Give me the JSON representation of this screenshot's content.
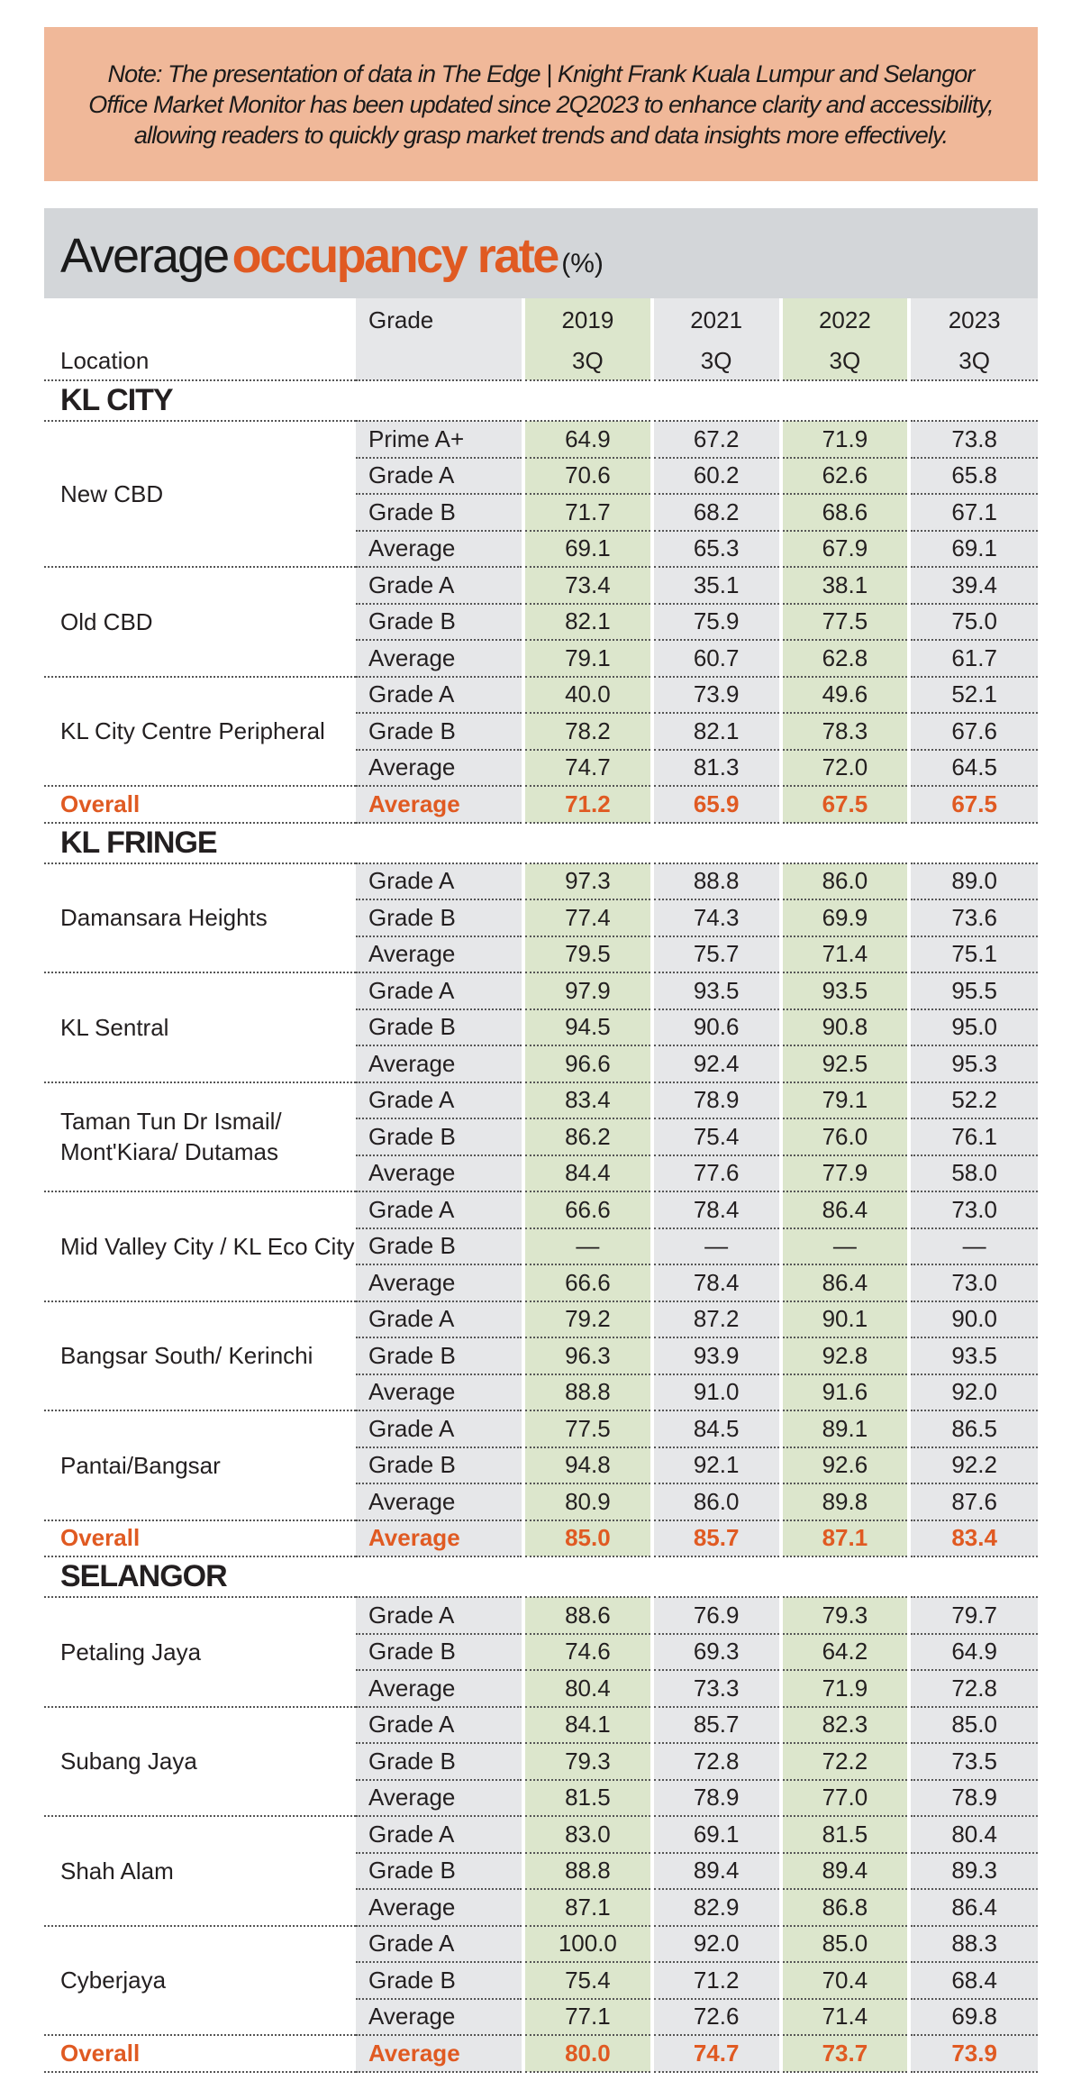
{
  "note": "Note: The presentation of data in The Edge | Knight Frank Kuala Lumpur and Selangor Office Market Monitor has been updated since 2Q2023 to enhance clarity and accessibility, allowing readers to quickly grasp market trends and data insights more effectively.",
  "title": {
    "part1": "Average",
    "part2": "occupancy rate",
    "part3": "(%)"
  },
  "colors": {
    "note_bg": "#f0b899",
    "title_bg": "#d3d6d9",
    "accent": "#e05a22",
    "highlight_col": "#dce6cc",
    "cell_bg": "#e6e7e9"
  },
  "header": {
    "grade": "Grade",
    "location": "Location",
    "years": [
      "2019",
      "2021",
      "2022",
      "2023"
    ],
    "quarters": [
      "3Q",
      "3Q",
      "3Q",
      "3Q"
    ]
  },
  "sections": [
    {
      "name": "KL CITY",
      "groups": [
        {
          "location": "New CBD",
          "rows": [
            {
              "grade": "Prime A+",
              "values": [
                "64.9",
                "67.2",
                "71.9",
                "73.8"
              ]
            },
            {
              "grade": "Grade A",
              "values": [
                "70.6",
                "60.2",
                "62.6",
                "65.8"
              ]
            },
            {
              "grade": "Grade B",
              "values": [
                "71.7",
                "68.2",
                "68.6",
                "67.1"
              ]
            },
            {
              "grade": "Average",
              "values": [
                "69.1",
                "65.3",
                "67.9",
                "69.1"
              ]
            }
          ]
        },
        {
          "location": "Old CBD",
          "rows": [
            {
              "grade": "Grade A",
              "values": [
                "73.4",
                "35.1",
                "38.1",
                "39.4"
              ]
            },
            {
              "grade": "Grade B",
              "values": [
                "82.1",
                "75.9",
                "77.5",
                "75.0"
              ]
            },
            {
              "grade": "Average",
              "values": [
                "79.1",
                "60.7",
                "62.8",
                "61.7"
              ]
            }
          ]
        },
        {
          "location": "KL City Centre Peripheral",
          "rows": [
            {
              "grade": "Grade A",
              "values": [
                "40.0",
                "73.9",
                "49.6",
                "52.1"
              ]
            },
            {
              "grade": "Grade B",
              "values": [
                "78.2",
                "82.1",
                "78.3",
                "67.6"
              ]
            },
            {
              "grade": "Average",
              "values": [
                "74.7",
                "81.3",
                "72.0",
                "64.5"
              ]
            }
          ]
        }
      ],
      "overall": {
        "label": "Overall",
        "grade": "Average",
        "values": [
          "71.2",
          "65.9",
          "67.5",
          "67.5"
        ]
      }
    },
    {
      "name": "KL FRINGE",
      "groups": [
        {
          "location": "Damansara Heights",
          "rows": [
            {
              "grade": "Grade A",
              "values": [
                "97.3",
                "88.8",
                "86.0",
                "89.0"
              ]
            },
            {
              "grade": "Grade B",
              "values": [
                "77.4",
                "74.3",
                "69.9",
                "73.6"
              ]
            },
            {
              "grade": "Average",
              "values": [
                "79.5",
                "75.7",
                "71.4",
                "75.1"
              ]
            }
          ]
        },
        {
          "location": "KL Sentral",
          "rows": [
            {
              "grade": "Grade A",
              "values": [
                "97.9",
                "93.5",
                "93.5",
                "95.5"
              ]
            },
            {
              "grade": "Grade B",
              "values": [
                "94.5",
                "90.6",
                "90.8",
                "95.0"
              ]
            },
            {
              "grade": "Average",
              "values": [
                "96.6",
                "92.4",
                "92.5",
                "95.3"
              ]
            }
          ]
        },
        {
          "location": "Taman Tun Dr Ismail/ Mont'Kiara/ Dutamas",
          "rows": [
            {
              "grade": "Grade A",
              "values": [
                "83.4",
                "78.9",
                "79.1",
                "52.2"
              ]
            },
            {
              "grade": "Grade B",
              "values": [
                "86.2",
                "75.4",
                "76.0",
                "76.1"
              ]
            },
            {
              "grade": "Average",
              "values": [
                "84.4",
                "77.6",
                "77.9",
                "58.0"
              ]
            }
          ]
        },
        {
          "location": "Mid Valley City / KL Eco City",
          "rows": [
            {
              "grade": "Grade A",
              "values": [
                "66.6",
                "78.4",
                "86.4",
                "73.0"
              ]
            },
            {
              "grade": "Grade B",
              "values": [
                "—",
                "—",
                "—",
                "—"
              ]
            },
            {
              "grade": "Average",
              "values": [
                "66.6",
                "78.4",
                "86.4",
                "73.0"
              ]
            }
          ]
        },
        {
          "location": "Bangsar South/ Kerinchi",
          "rows": [
            {
              "grade": "Grade A",
              "values": [
                "79.2",
                "87.2",
                "90.1",
                "90.0"
              ]
            },
            {
              "grade": "Grade B",
              "values": [
                "96.3",
                "93.9",
                "92.8",
                "93.5"
              ]
            },
            {
              "grade": "Average",
              "values": [
                "88.8",
                "91.0",
                "91.6",
                "92.0"
              ]
            }
          ]
        },
        {
          "location": "Pantai/Bangsar",
          "rows": [
            {
              "grade": "Grade A",
              "values": [
                "77.5",
                "84.5",
                "89.1",
                "86.5"
              ]
            },
            {
              "grade": "Grade B",
              "values": [
                "94.8",
                "92.1",
                "92.6",
                "92.2"
              ]
            },
            {
              "grade": "Average",
              "values": [
                "80.9",
                "86.0",
                "89.8",
                "87.6"
              ]
            }
          ]
        }
      ],
      "overall": {
        "label": "Overall",
        "grade": "Average",
        "values": [
          "85.0",
          "85.7",
          "87.1",
          "83.4"
        ]
      }
    },
    {
      "name": "SELANGOR",
      "groups": [
        {
          "location": "Petaling Jaya",
          "rows": [
            {
              "grade": "Grade A",
              "values": [
                "88.6",
                "76.9",
                "79.3",
                "79.7"
              ]
            },
            {
              "grade": "Grade B",
              "values": [
                "74.6",
                "69.3",
                "64.2",
                "64.9"
              ]
            },
            {
              "grade": "Average",
              "values": [
                "80.4",
                "73.3",
                "71.9",
                "72.8"
              ]
            }
          ]
        },
        {
          "location": "Subang Jaya",
          "rows": [
            {
              "grade": "Grade A",
              "values": [
                "84.1",
                "85.7",
                "82.3",
                "85.0"
              ]
            },
            {
              "grade": "Grade B",
              "values": [
                "79.3",
                "72.8",
                "72.2",
                "73.5"
              ]
            },
            {
              "grade": "Average",
              "values": [
                "81.5",
                "78.9",
                "77.0",
                "78.9"
              ]
            }
          ]
        },
        {
          "location": "Shah Alam",
          "rows": [
            {
              "grade": "Grade A",
              "values": [
                "83.0",
                "69.1",
                "81.5",
                "80.4"
              ]
            },
            {
              "grade": "Grade B",
              "values": [
                "88.8",
                "89.4",
                "89.4",
                "89.3"
              ]
            },
            {
              "grade": "Average",
              "values": [
                "87.1",
                "82.9",
                "86.8",
                "86.4"
              ]
            }
          ]
        },
        {
          "location": "Cyberjaya",
          "rows": [
            {
              "grade": "Grade A",
              "values": [
                "100.0",
                "92.0",
                "85.0",
                "88.3"
              ]
            },
            {
              "grade": "Grade B",
              "values": [
                "75.4",
                "71.2",
                "70.4",
                "68.4"
              ]
            },
            {
              "grade": "Average",
              "values": [
                "77.1",
                "72.6",
                "71.4",
                "69.8"
              ]
            }
          ]
        }
      ],
      "overall": {
        "label": "Overall",
        "grade": "Average",
        "values": [
          "80.0",
          "74.7",
          "73.7",
          "73.9"
        ]
      }
    }
  ]
}
